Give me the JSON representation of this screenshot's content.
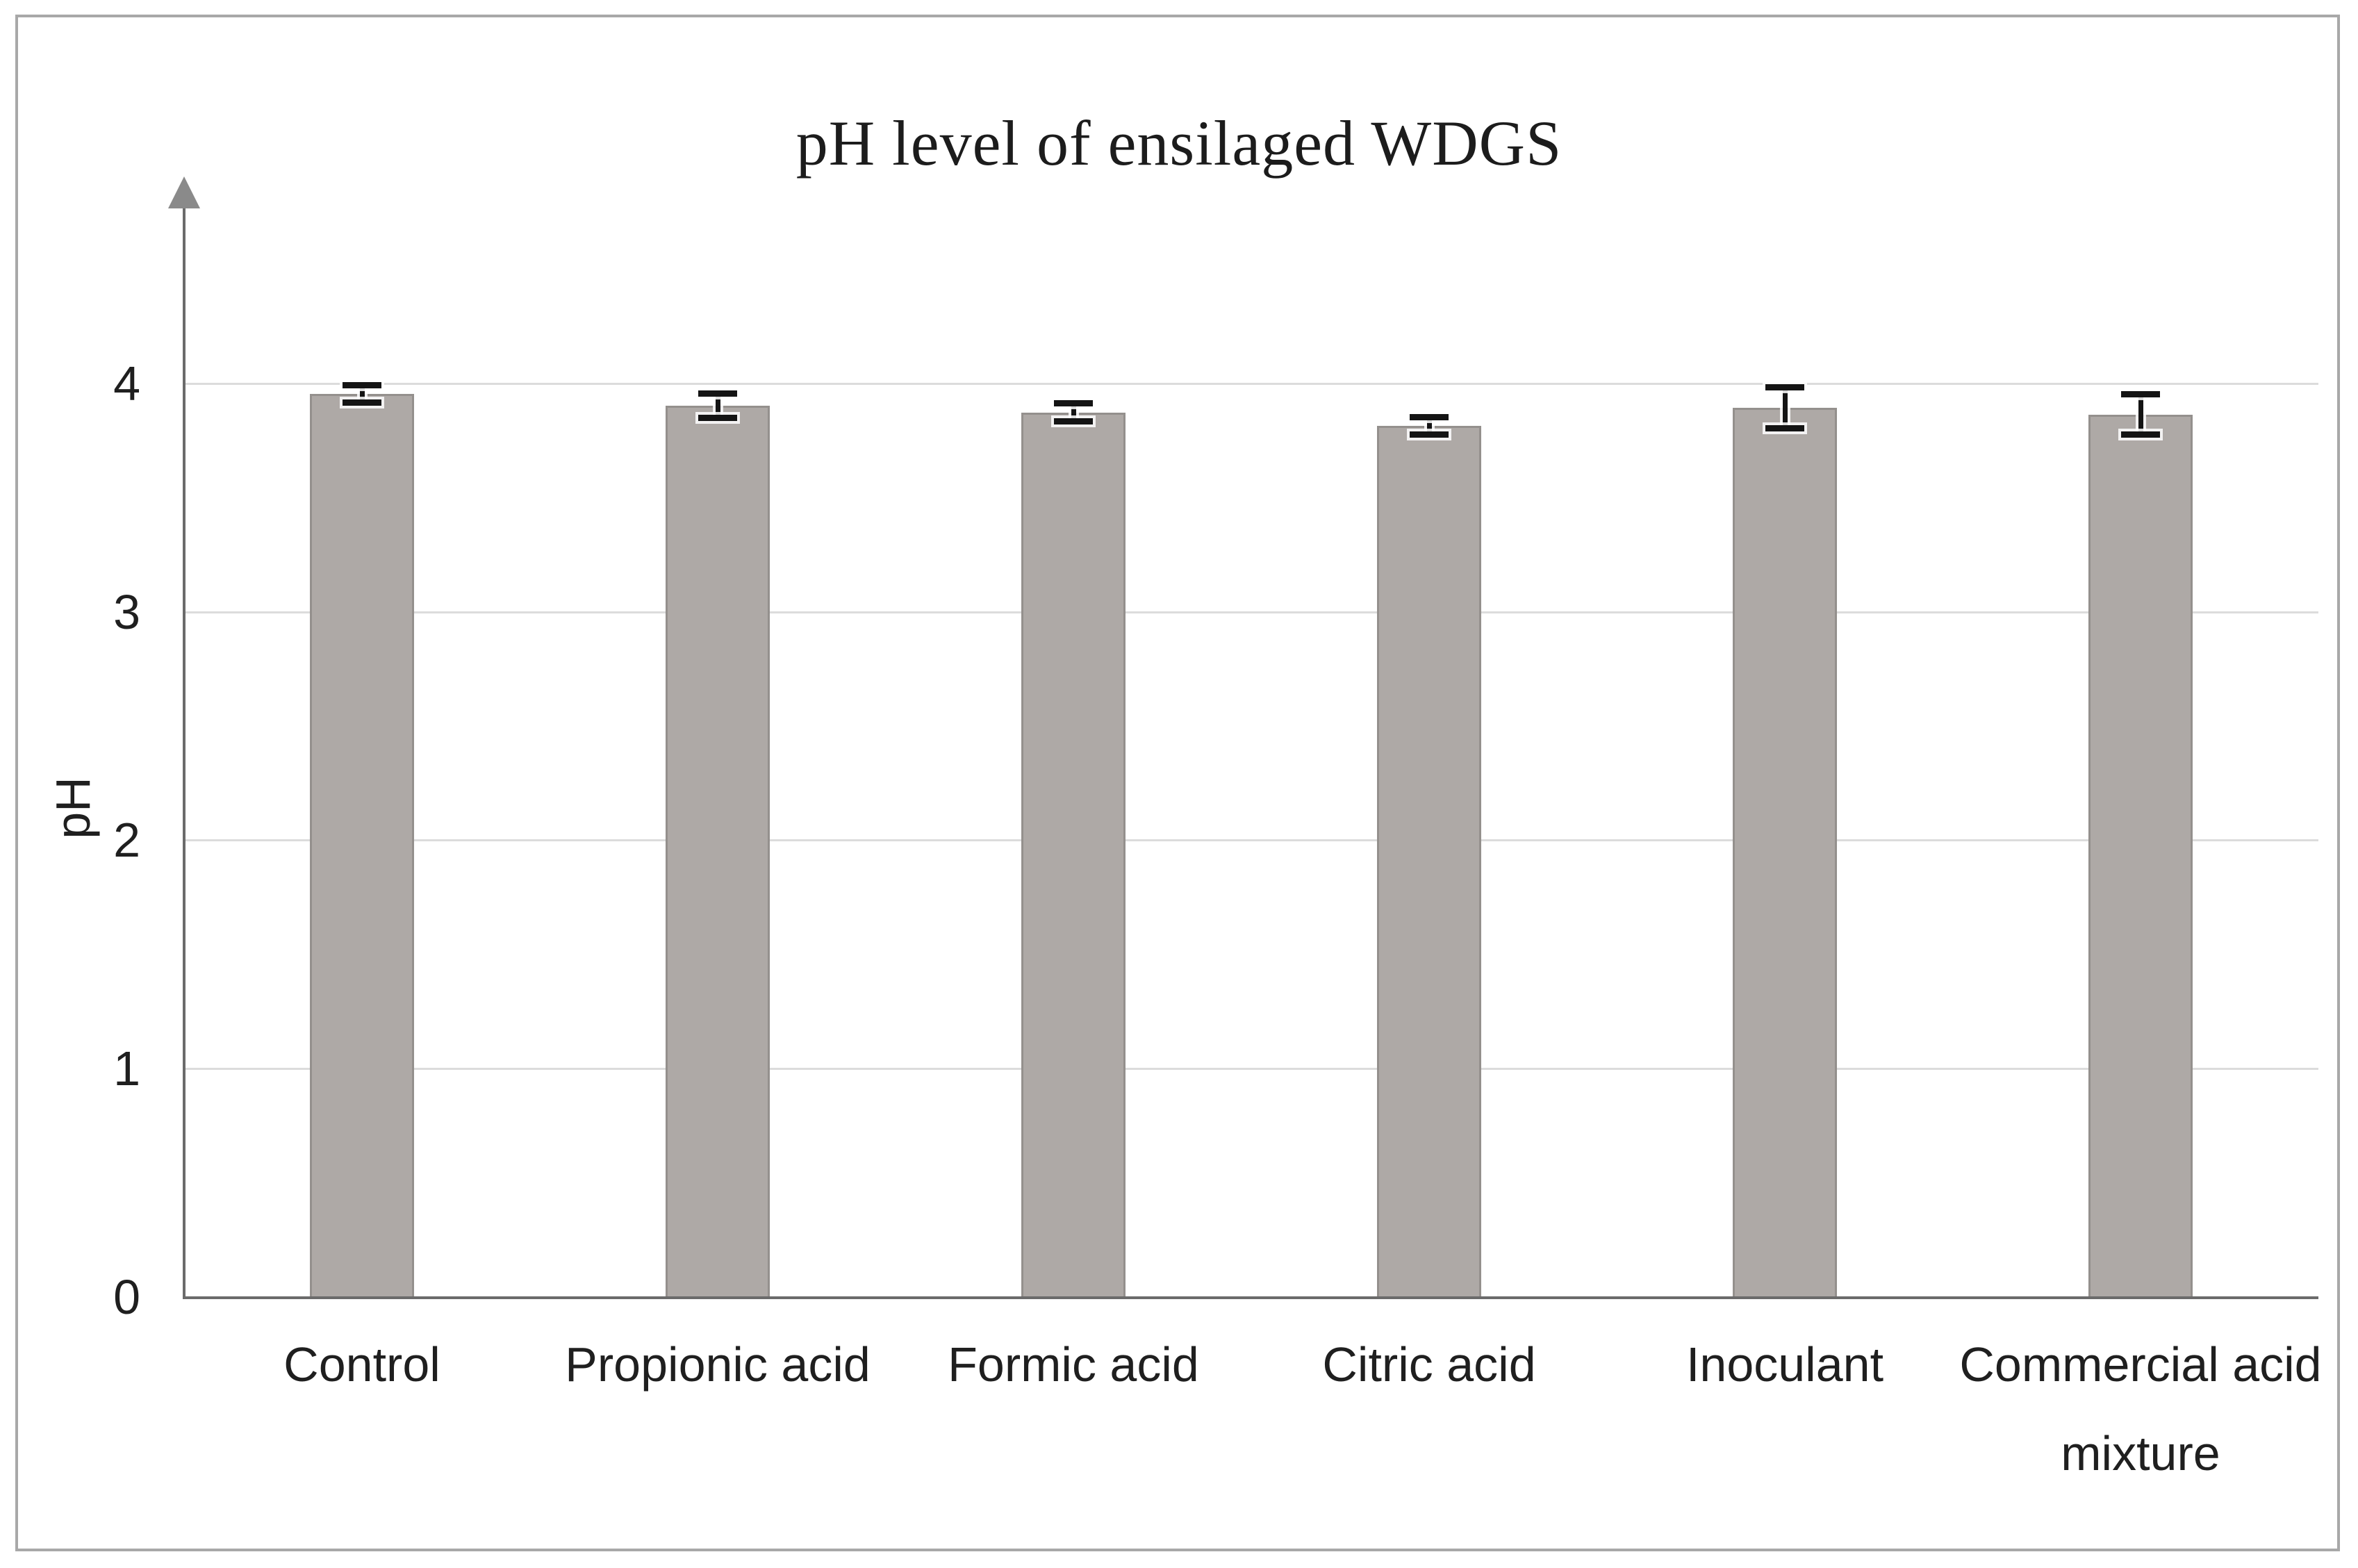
{
  "chart_data": {
    "type": "bar",
    "title": "pH level of ensilaged WDGS",
    "xlabel": "",
    "ylabel": "pH",
    "categories": [
      "Control",
      "Propionic acid",
      "Formic acid",
      "Citric acid",
      "Inoculant",
      "Commercial acid mixture"
    ],
    "values": [
      3.95,
      3.9,
      3.87,
      3.81,
      3.89,
      3.86
    ],
    "error_bars": [
      0.04,
      0.055,
      0.04,
      0.04,
      0.09,
      0.09
    ],
    "yticks": [
      0,
      1,
      2,
      3,
      4
    ],
    "ylim": [
      0,
      4.77
    ],
    "grid": true,
    "legend_position": "none",
    "colors": {
      "bar_fill": "#aea9a6",
      "bar_border": "#94908d",
      "error_bar": "#141414",
      "axis": "#6b6b6b",
      "arrow": "#8a8a8a",
      "gridline": "#dcdcdc",
      "title_text": "#1c1c1c",
      "label_text": "#1f1f1f",
      "frame_border": "#a8a8a8",
      "background": "#ffffff"
    }
  }
}
